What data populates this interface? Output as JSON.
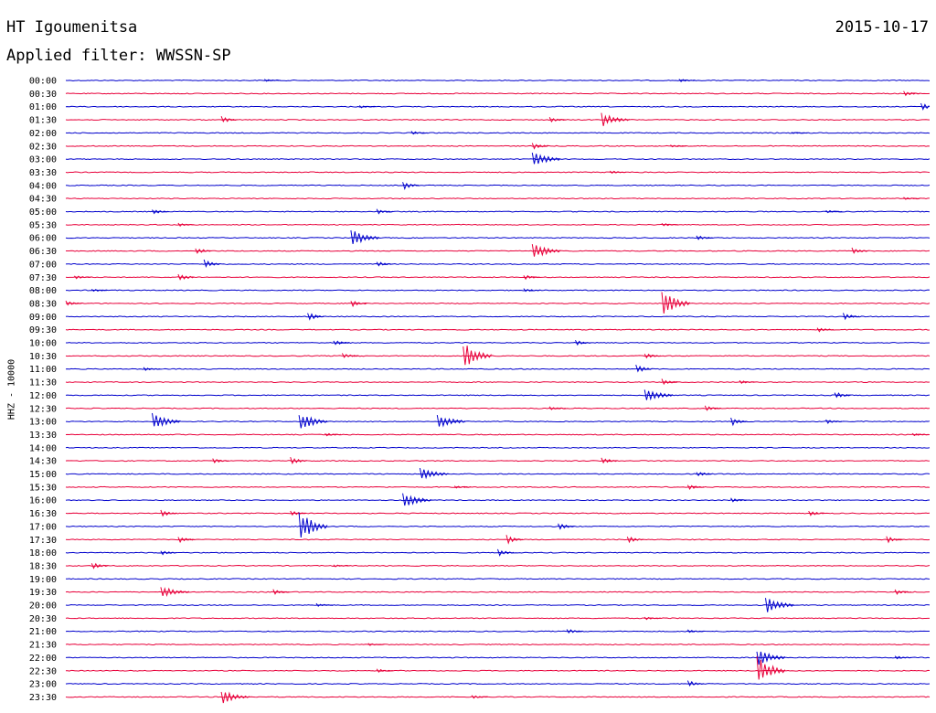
{
  "header": {
    "station": "HT Igoumenitsa",
    "date": "2015-10-17",
    "filter": "Applied filter: WWSSN-SP"
  },
  "chart_data": {
    "type": "line",
    "title": "HT Igoumenitsa",
    "ylabel": "HHZ - 10000",
    "trace_colors": [
      "#0000cc",
      "#e8003a"
    ],
    "rows": [
      {
        "label": "00:00",
        "events": [
          [
            23,
            1.5
          ],
          [
            71,
            1.8
          ]
        ]
      },
      {
        "label": "00:30",
        "events": [
          [
            97,
            3
          ]
        ]
      },
      {
        "label": "01:00",
        "events": [
          [
            34,
            1.5
          ],
          [
            99,
            4
          ]
        ]
      },
      {
        "label": "01:30",
        "events": [
          [
            18,
            4
          ],
          [
            56,
            3
          ],
          [
            62,
            8
          ]
        ]
      },
      {
        "label": "02:00",
        "events": [
          [
            40,
            2
          ],
          [
            84,
            1
          ]
        ]
      },
      {
        "label": "02:30",
        "events": [
          [
            54,
            4
          ],
          [
            70,
            1.5
          ]
        ]
      },
      {
        "label": "03:00",
        "events": [
          [
            54,
            9
          ]
        ]
      },
      {
        "label": "03:30",
        "events": [
          [
            63,
            2
          ]
        ]
      },
      {
        "label": "04:00",
        "events": [
          [
            39,
            5
          ]
        ]
      },
      {
        "label": "04:30",
        "events": [
          [
            97,
            1.5
          ]
        ]
      },
      {
        "label": "05:00",
        "events": [
          [
            10,
            3
          ],
          [
            36,
            3
          ],
          [
            88,
            2
          ]
        ]
      },
      {
        "label": "05:30",
        "events": [
          [
            13,
            2
          ],
          [
            69,
            2
          ]
        ]
      },
      {
        "label": "06:00",
        "events": [
          [
            33,
            10
          ],
          [
            73,
            3
          ]
        ]
      },
      {
        "label": "06:30",
        "events": [
          [
            15,
            4
          ],
          [
            54,
            10
          ],
          [
            91,
            4
          ]
        ]
      },
      {
        "label": "07:00",
        "events": [
          [
            16,
            5
          ],
          [
            36,
            3
          ]
        ]
      },
      {
        "label": "07:30",
        "events": [
          [
            1,
            2
          ],
          [
            13,
            5
          ],
          [
            53,
            3
          ]
        ]
      },
      {
        "label": "08:00",
        "events": [
          [
            3,
            2
          ],
          [
            53,
            2
          ]
        ]
      },
      {
        "label": "08:30",
        "events": [
          [
            0,
            3
          ],
          [
            33,
            4
          ],
          [
            69,
            16
          ]
        ]
      },
      {
        "label": "09:00",
        "events": [
          [
            28,
            5
          ],
          [
            90,
            4
          ]
        ]
      },
      {
        "label": "09:30",
        "events": [
          [
            87,
            3
          ]
        ]
      },
      {
        "label": "10:00",
        "events": [
          [
            31,
            3
          ],
          [
            59,
            3
          ]
        ]
      },
      {
        "label": "10:30",
        "events": [
          [
            32,
            3
          ],
          [
            46,
            16
          ],
          [
            67,
            3
          ]
        ]
      },
      {
        "label": "11:00",
        "events": [
          [
            9,
            2
          ],
          [
            66,
            5
          ]
        ]
      },
      {
        "label": "11:30",
        "events": [
          [
            69,
            4
          ],
          [
            78,
            2
          ]
        ]
      },
      {
        "label": "12:00",
        "events": [
          [
            67,
            8
          ],
          [
            89,
            4
          ]
        ]
      },
      {
        "label": "12:30",
        "events": [
          [
            56,
            2
          ],
          [
            74,
            3
          ]
        ]
      },
      {
        "label": "13:00",
        "events": [
          [
            10,
            10
          ],
          [
            27,
            11
          ],
          [
            43,
            9
          ],
          [
            77,
            5
          ],
          [
            88,
            3
          ]
        ]
      },
      {
        "label": "13:30",
        "events": [
          [
            30,
            2
          ],
          [
            98,
            2
          ]
        ]
      },
      {
        "label": "14:00",
        "events": []
      },
      {
        "label": "14:30",
        "events": [
          [
            17,
            3
          ],
          [
            26,
            5
          ],
          [
            62,
            4
          ]
        ]
      },
      {
        "label": "15:00",
        "events": [
          [
            41,
            8
          ],
          [
            73,
            3
          ]
        ]
      },
      {
        "label": "15:30",
        "events": [
          [
            45,
            2
          ],
          [
            72,
            3
          ]
        ]
      },
      {
        "label": "16:00",
        "events": [
          [
            39,
            9
          ],
          [
            77,
            3
          ]
        ]
      },
      {
        "label": "16:30",
        "events": [
          [
            11,
            4
          ],
          [
            26,
            3
          ],
          [
            86,
            3
          ]
        ]
      },
      {
        "label": "17:00",
        "events": [
          [
            27,
            18
          ],
          [
            57,
            4
          ]
        ]
      },
      {
        "label": "17:30",
        "events": [
          [
            13,
            4
          ],
          [
            51,
            6
          ],
          [
            65,
            4
          ],
          [
            95,
            4
          ]
        ]
      },
      {
        "label": "18:00",
        "events": [
          [
            11,
            3
          ],
          [
            50,
            4
          ]
        ]
      },
      {
        "label": "18:30",
        "events": [
          [
            3,
            4
          ],
          [
            31,
            1.5
          ]
        ]
      },
      {
        "label": "19:00",
        "events": []
      },
      {
        "label": "19:30",
        "events": [
          [
            11,
            7
          ],
          [
            24,
            3
          ],
          [
            96,
            3
          ]
        ]
      },
      {
        "label": "20:00",
        "events": [
          [
            29,
            2
          ],
          [
            81,
            10
          ]
        ]
      },
      {
        "label": "20:30",
        "events": [
          [
            67,
            2
          ]
        ]
      },
      {
        "label": "21:00",
        "events": [
          [
            58,
            3
          ],
          [
            72,
            2
          ]
        ]
      },
      {
        "label": "21:30",
        "events": [
          [
            35,
            1.5
          ]
        ]
      },
      {
        "label": "22:00",
        "events": [
          [
            80,
            10
          ],
          [
            96,
            2
          ]
        ]
      },
      {
        "label": "22:30",
        "events": [
          [
            80,
            17
          ],
          [
            36,
            2
          ]
        ]
      },
      {
        "label": "23:00",
        "events": [
          [
            72,
            4
          ]
        ]
      },
      {
        "label": "23:30",
        "events": [
          [
            18,
            8
          ],
          [
            47,
            2
          ]
        ]
      }
    ]
  }
}
